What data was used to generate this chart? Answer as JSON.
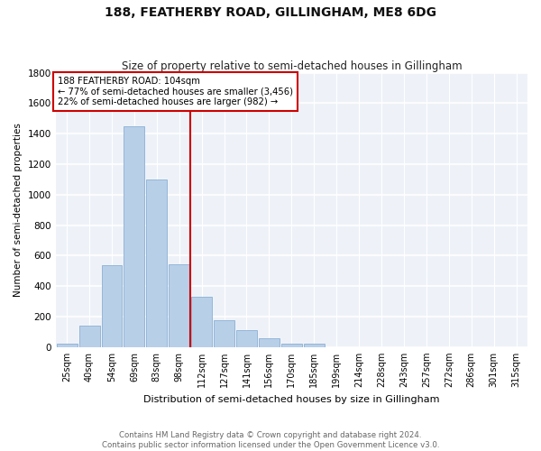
{
  "title": "188, FEATHERBY ROAD, GILLINGHAM, ME8 6DG",
  "subtitle": "Size of property relative to semi-detached houses in Gillingham",
  "xlabel": "Distribution of semi-detached houses by size in Gillingham",
  "ylabel": "Number of semi-detached properties",
  "categories": [
    "25sqm",
    "40sqm",
    "54sqm",
    "69sqm",
    "83sqm",
    "98sqm",
    "112sqm",
    "127sqm",
    "141sqm",
    "156sqm",
    "170sqm",
    "185sqm",
    "199sqm",
    "214sqm",
    "228sqm",
    "243sqm",
    "257sqm",
    "272sqm",
    "286sqm",
    "301sqm",
    "315sqm"
  ],
  "values": [
    20,
    140,
    540,
    1450,
    1100,
    545,
    330,
    175,
    110,
    60,
    20,
    20,
    0,
    0,
    0,
    0,
    0,
    0,
    0,
    0,
    0
  ],
  "bar_color": "#b8cfe8",
  "bar_edge_color": "#8aafd4",
  "vline_color": "#cc0000",
  "vline_x_index": 5.5,
  "box_color": "#cc0000",
  "annotation_text_line1": "188 FEATHERBY ROAD: 104sqm",
  "annotation_text_line2": "← 77% of semi-detached houses are smaller (3,456)",
  "annotation_text_line3": "22% of semi-detached houses are larger (982) →",
  "ylim": [
    0,
    1800
  ],
  "yticks": [
    0,
    200,
    400,
    600,
    800,
    1000,
    1200,
    1400,
    1600,
    1800
  ],
  "footnote1": "Contains HM Land Registry data © Crown copyright and database right 2024.",
  "footnote2": "Contains public sector information licensed under the Open Government Licence v3.0.",
  "bg_color": "#ffffff",
  "plot_bg_color": "#eef2f8"
}
